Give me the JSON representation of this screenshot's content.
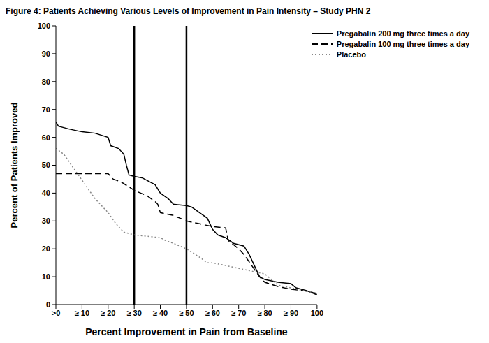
{
  "chart_data": {
    "type": "line",
    "title": "Figure 4: Patients Achieving Various Levels of Improvement in Pain Intensity – Study PHN 2",
    "x_label": "Percent Improvement in Pain from Baseline",
    "y_label": "Percent of Patients Improved",
    "xlim": [
      0,
      100
    ],
    "xticks": [
      {
        "value": 0,
        "label": ">0"
      },
      {
        "value": 10,
        "label": "≥ 10"
      },
      {
        "value": 20,
        "label": "≥ 20"
      },
      {
        "value": 30,
        "label": "≥ 30"
      },
      {
        "value": 40,
        "label": "≥ 40"
      },
      {
        "value": 50,
        "label": "≥ 50"
      },
      {
        "value": 60,
        "label": "≥ 60"
      },
      {
        "value": 70,
        "label": "≥ 70"
      },
      {
        "value": 80,
        "label": "≥ 80"
      },
      {
        "value": 90,
        "label": "≥ 90"
      },
      100
    ],
    "ylim": [
      0,
      100
    ],
    "yticks": [
      0,
      10,
      20,
      30,
      40,
      50,
      60,
      70,
      80,
      90,
      100
    ],
    "grid": false,
    "legend": "top-right",
    "vlines": [
      30,
      50
    ],
    "series": [
      {
        "name": "Pregabalin 200 mg three times a day",
        "color": "#000000",
        "line_style": "solid",
        "marker": "none",
        "x": [
          0,
          1,
          5,
          10,
          15,
          20,
          21,
          24,
          26,
          27,
          28,
          30,
          33,
          36,
          38,
          40,
          43,
          45,
          50,
          52,
          55,
          58,
          60,
          62,
          65,
          68,
          72,
          74,
          76,
          78,
          80,
          85,
          90,
          92,
          96,
          100
        ],
        "values": [
          65.5,
          64,
          63,
          62,
          61.5,
          60,
          57,
          56,
          54,
          50,
          46.5,
          46,
          45.5,
          44,
          43,
          40,
          38,
          36,
          35.5,
          35,
          33,
          31,
          27,
          25,
          24,
          22,
          21,
          18,
          14,
          10,
          9,
          8,
          7.5,
          6,
          5,
          3.5
        ]
      },
      {
        "name": "Pregabalin 100 mg three times a day",
        "color": "#000000",
        "line_style": "dashed",
        "marker": "none",
        "x": [
          0,
          20,
          22,
          25,
          30,
          35,
          38,
          39,
          40,
          45,
          50,
          55,
          60,
          65,
          66,
          70,
          72,
          75,
          78,
          80,
          85,
          90,
          95,
          100
        ],
        "values": [
          47,
          47,
          45,
          44,
          41,
          39,
          37,
          36,
          33,
          32,
          30,
          29,
          28,
          27.5,
          23,
          20,
          18,
          14,
          10,
          8,
          6.5,
          5.5,
          5,
          4
        ]
      },
      {
        "name": "Placebo",
        "color": "#888888",
        "line_style": "dotted",
        "marker": "none",
        "x": [
          0,
          3,
          6,
          9,
          12,
          15,
          18,
          20,
          23,
          26,
          30,
          35,
          40,
          42,
          45,
          50,
          55,
          58,
          60,
          65,
          70,
          75,
          80,
          85,
          90,
          95,
          100
        ],
        "values": [
          56,
          54,
          50,
          46,
          42,
          38,
          35,
          33,
          29,
          26,
          25,
          24.5,
          24,
          23,
          22,
          20,
          17,
          15,
          15,
          14,
          13,
          12,
          11,
          7,
          6,
          5,
          4
        ]
      }
    ]
  }
}
